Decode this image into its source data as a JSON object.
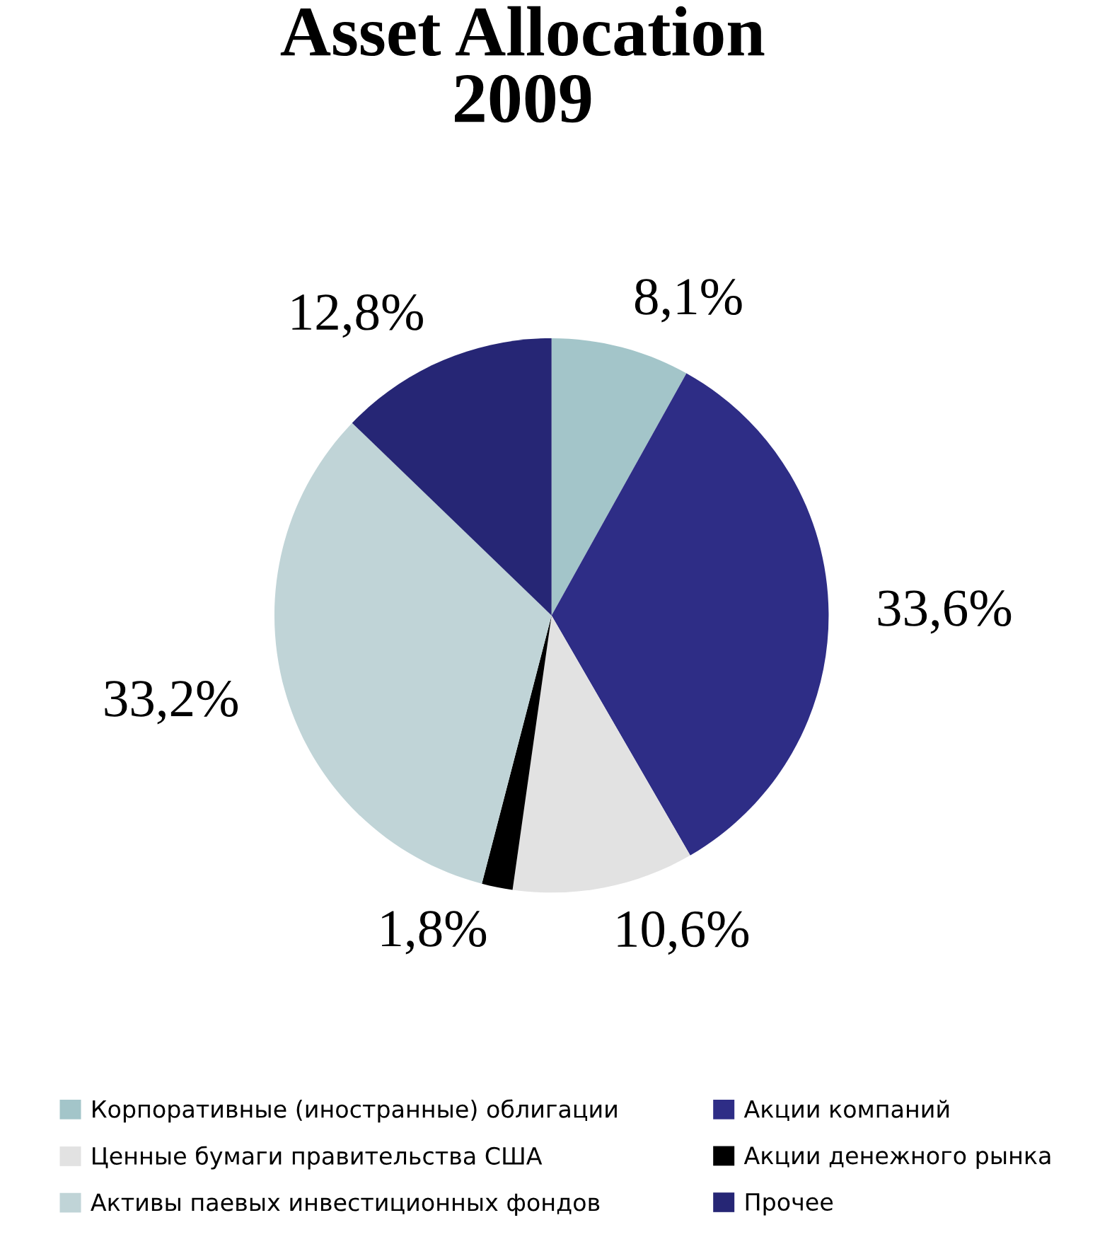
{
  "chart_data": {
    "type": "pie",
    "title": "Asset Allocation\n2009",
    "categories": [
      "Корпоративные (иностранные) облигации",
      "Акции компаний",
      "Ценные бумаги правительства США",
      "Акции денежного рынка",
      "Активы паевых инвестиционных фондов",
      "Прочее"
    ],
    "values": [
      8.1,
      33.6,
      10.6,
      1.8,
      33.2,
      12.8
    ],
    "value_labels": [
      "8,1%",
      "33,6%",
      "10,6%",
      "1,8%",
      "33,2%",
      "12,8%"
    ],
    "colors": [
      "#a3c5c9",
      "#2e2d86",
      "#e2e2e2",
      "#000000",
      "#c0d4d7",
      "#262675"
    ],
    "legend": "bottom"
  }
}
